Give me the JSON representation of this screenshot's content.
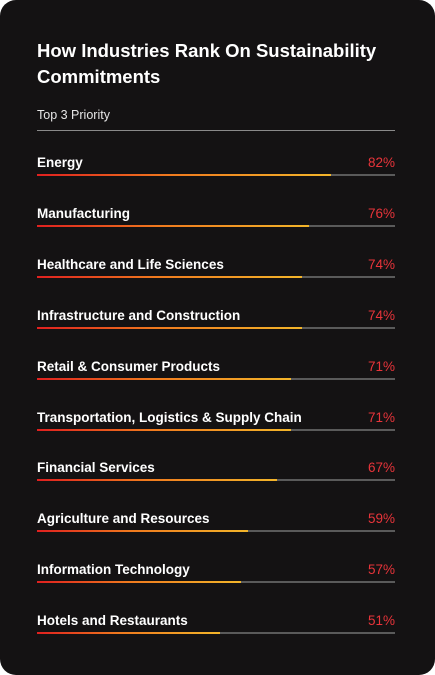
{
  "title": "How Industries Rank On Sustainability Commitments",
  "subtitle": "Top 3 Priority",
  "colors": {
    "background": "#141213",
    "value_text": "#e8343a",
    "bar_start": "#e0201f",
    "bar_end": "#f3b52a",
    "track": "#5a5a5a"
  },
  "chart_data": {
    "type": "bar",
    "orientation": "horizontal",
    "title": "How Industries Rank On Sustainability Commitments",
    "subtitle": "Top 3 Priority",
    "xlim": [
      0,
      100
    ],
    "categories": [
      "Energy",
      "Manufacturing",
      "Healthcare and Life Sciences",
      "Infrastructure and Construction",
      "Retail & Consumer Products",
      "Transportation, Logistics & Supply Chain",
      "Financial Services",
      "Agriculture and Resources",
      "Information Technology",
      "Hotels and Restaurants"
    ],
    "values": [
      82,
      76,
      74,
      74,
      71,
      71,
      67,
      59,
      57,
      51
    ],
    "value_labels": [
      "82%",
      "76%",
      "74%",
      "74%",
      "71%",
      "71%",
      "67%",
      "59%",
      "57%",
      "51%"
    ]
  }
}
